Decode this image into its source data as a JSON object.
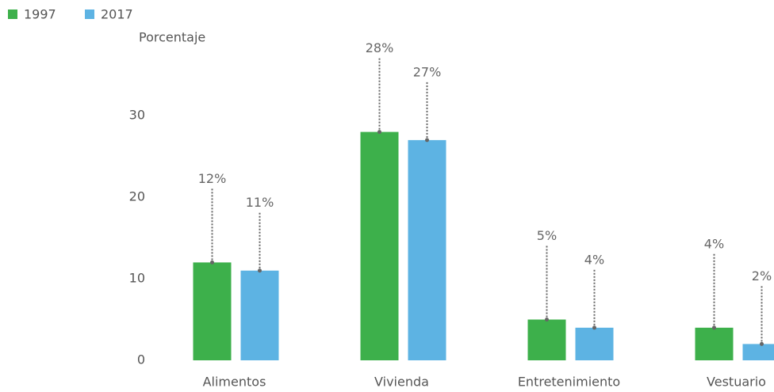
{
  "chart_data": {
    "type": "bar",
    "y_label": "Porcentaje",
    "categories": [
      "Alimentos",
      "Vivienda",
      "Entretenimiento",
      "Vestuario"
    ],
    "series": [
      {
        "name": "1997",
        "color": "#3db04b",
        "values": [
          12,
          28,
          5,
          4
        ],
        "value_labels": [
          "12%",
          "28%",
          "5%",
          "4%"
        ]
      },
      {
        "name": "2017",
        "color": "#5db3e3",
        "values": [
          11,
          27,
          4,
          2
        ],
        "value_labels": [
          "11%",
          "27%",
          "4%",
          "2%"
        ]
      }
    ],
    "ylim": [
      0,
      30
    ],
    "yticks": [
      0,
      10,
      20,
      30
    ],
    "grid": false,
    "legend": "top-left"
  }
}
